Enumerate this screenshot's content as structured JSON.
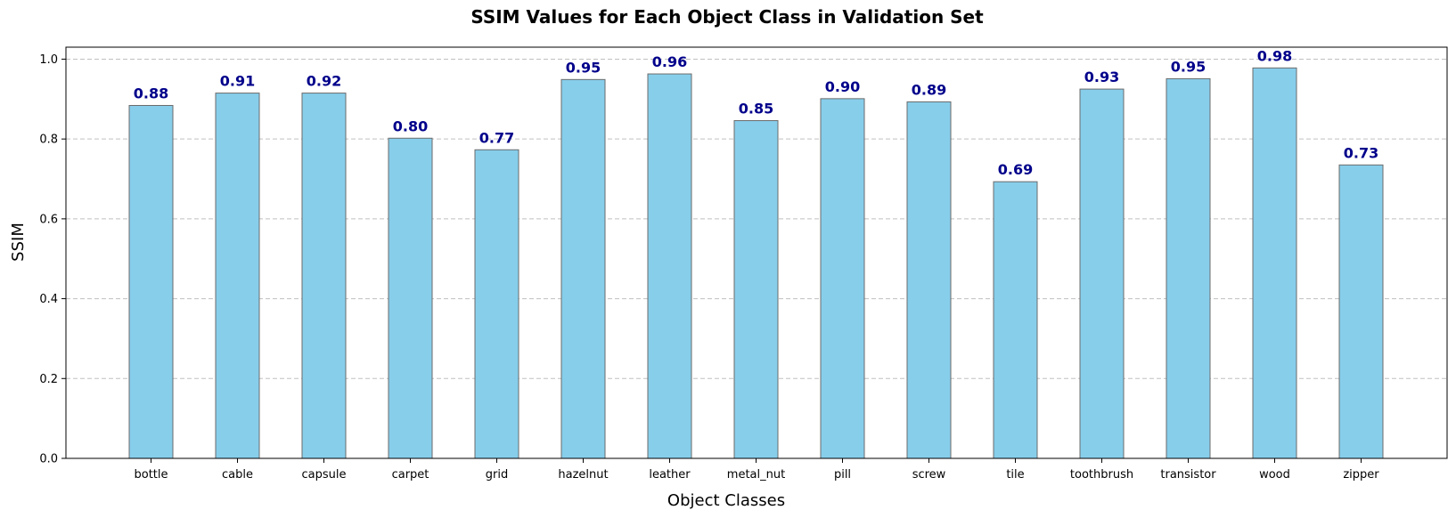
{
  "chart_data": {
    "type": "bar",
    "title": "SSIM Values for Each Object Class in Validation Set",
    "xlabel": "Object Classes",
    "ylabel": "SSIM",
    "categories": [
      "bottle",
      "cable",
      "capsule",
      "carpet",
      "grid",
      "hazelnut",
      "leather",
      "metal_nut",
      "pill",
      "screw",
      "tile",
      "toothbrush",
      "transistor",
      "wood",
      "zipper"
    ],
    "values": [
      0.884,
      0.915,
      0.915,
      0.802,
      0.773,
      0.949,
      0.963,
      0.846,
      0.901,
      0.893,
      0.693,
      0.925,
      0.951,
      0.978,
      0.735
    ],
    "value_labels": [
      "0.88",
      "0.91",
      "0.92",
      "0.80",
      "0.77",
      "0.95",
      "0.96",
      "0.85",
      "0.90",
      "0.89",
      "0.69",
      "0.93",
      "0.95",
      "0.98",
      "0.73"
    ],
    "yticks": [
      "0.0",
      "0.2",
      "0.4",
      "0.6",
      "0.8",
      "1.0"
    ],
    "ytick_values": [
      0.0,
      0.2,
      0.4,
      0.6,
      0.8,
      1.0
    ],
    "ylim": [
      0,
      1.03
    ],
    "grid": "y-dashed",
    "colors": {
      "bar_fill": "#87ceeb",
      "bar_edge": "#6b6b6b",
      "value_label": "#00008b",
      "grid": "#c0c0c0",
      "axis": "#000000"
    }
  }
}
